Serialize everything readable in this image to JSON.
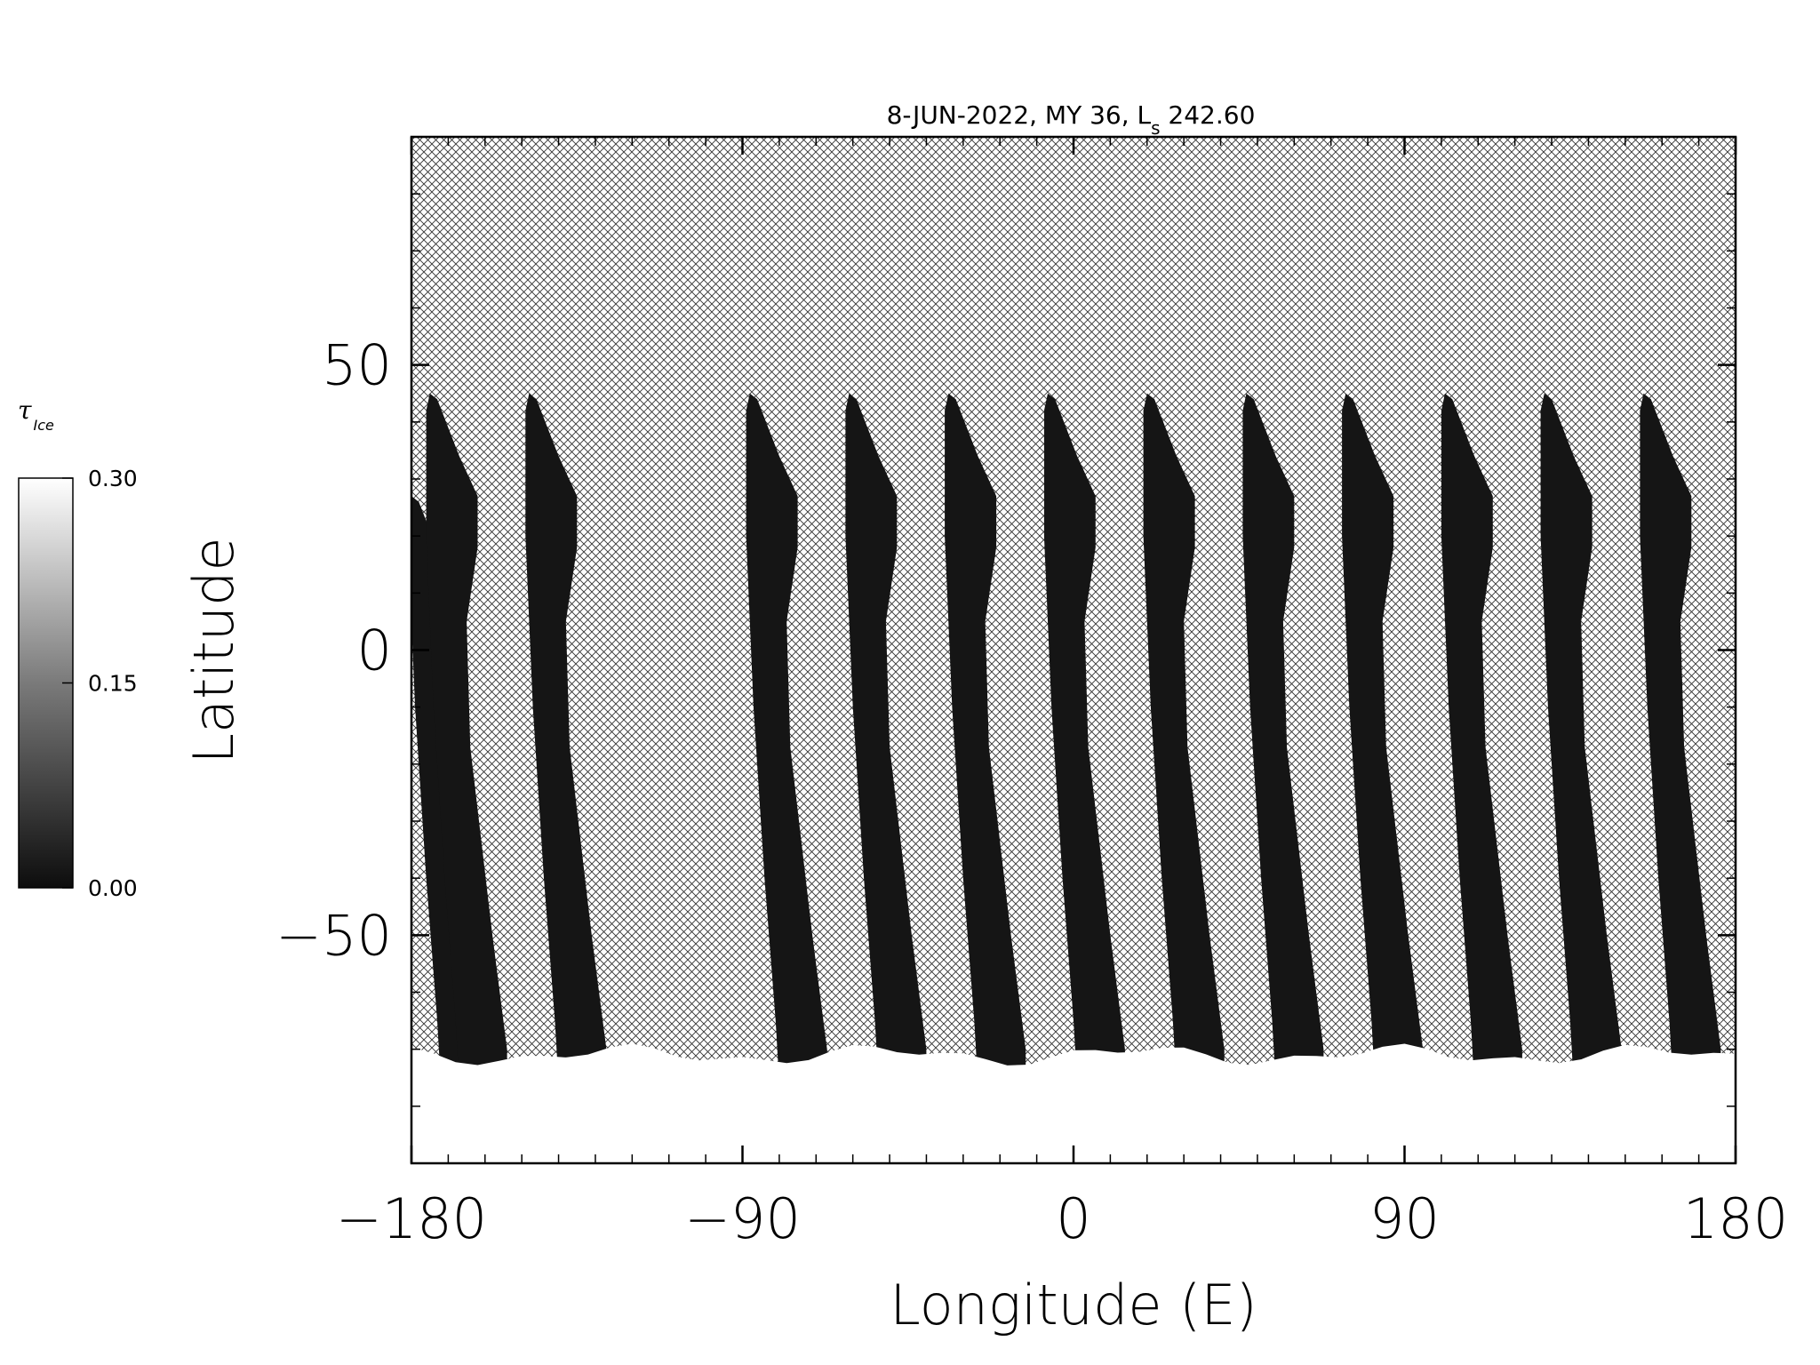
{
  "chart_data": {
    "type": "heatmap",
    "title": {
      "prefix": "8-JUN-2022, MY 36,  L",
      "subscript": "s",
      "suffix": " 242.60"
    },
    "xlabel": "Longitude (E)",
    "ylabel": "Latitude",
    "xlim": [
      -180,
      180
    ],
    "ylim": [
      -90,
      90
    ],
    "xticks": [
      {
        "value": -180,
        "label": "−180"
      },
      {
        "value": -90,
        "label": "−90"
      },
      {
        "value": 0,
        "label": "0"
      },
      {
        "value": 90,
        "label": "90"
      },
      {
        "value": 180,
        "label": "180"
      }
    ],
    "yticks": [
      {
        "value": 50,
        "label": "50"
      },
      {
        "value": 0,
        "label": "0"
      },
      {
        "value": -50,
        "label": "−50"
      }
    ],
    "x_minor_step": 10,
    "y_minor_step": 10,
    "colorbar": {
      "label_main": "τ",
      "label_sub": "Ice",
      "min": 0.0,
      "max": 0.3,
      "ticks": [
        {
          "value": 0.3,
          "label": "0.30"
        },
        {
          "value": 0.15,
          "label": "0.15"
        },
        {
          "value": 0.0,
          "label": "0.00"
        }
      ],
      "colormap": "grayscale"
    },
    "no_data_pattern": "crosshatch",
    "swaths": [
      {
        "lon_start": -180,
        "lat_north": 27
      },
      {
        "lon_start": -175,
        "lat_north": 45
      },
      {
        "lon_start": -148,
        "lat_north": 45
      },
      {
        "lon_start": -88,
        "lat_north": 45
      },
      {
        "lon_start": -61,
        "lat_north": 45
      },
      {
        "lon_start": -34,
        "lat_north": 45
      },
      {
        "lon_start": -7,
        "lat_north": 45
      },
      {
        "lon_start": 20,
        "lat_north": 45
      },
      {
        "lon_start": 47,
        "lat_north": 45
      },
      {
        "lon_start": 74,
        "lat_north": 45
      },
      {
        "lon_start": 101,
        "lat_north": 45
      },
      {
        "lon_start": 128,
        "lat_north": 45
      },
      {
        "lon_start": 155,
        "lat_north": 45
      }
    ],
    "swath_value": 0.01,
    "polar_cap": {
      "lat_boundary": -72,
      "value": 0.3
    },
    "grid": false
  }
}
